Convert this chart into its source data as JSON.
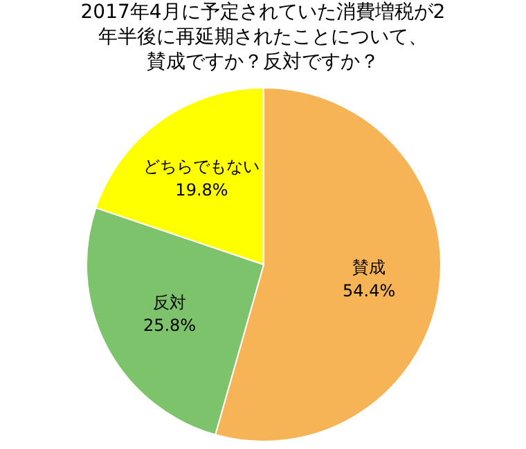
{
  "chart_data": {
    "type": "pie",
    "title": "2017年4月に予定されていた消費増税が2年半後に再延期されたことについて、賛成ですか？反対ですか？",
    "categories": [
      "賛成",
      "反対",
      "どちらでもない"
    ],
    "values": [
      54.4,
      25.8,
      19.8
    ],
    "value_labels": [
      "54.4%",
      "25.8%",
      "19.8%"
    ],
    "colors": [
      "#f6b456",
      "#7cc36c",
      "#ffff00"
    ]
  }
}
